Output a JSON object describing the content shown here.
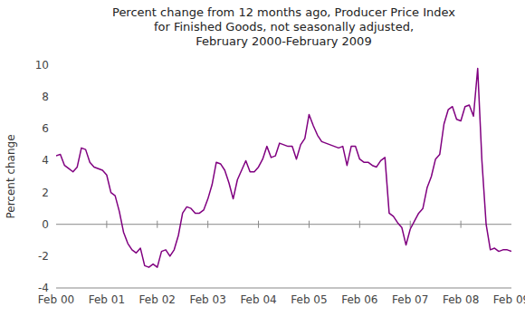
{
  "chart_data": {
    "type": "line",
    "title": "Percent change from 12 months ago, Producer Price Index\nfor Finished Goods, not seasonally adjusted,\nFebruary 2000-February 2009",
    "y_label": "Percent change",
    "color": "#800080",
    "grid": false,
    "ylim": [
      -4,
      10
    ],
    "yticks": [
      -4,
      -2,
      0,
      2,
      4,
      6,
      8,
      10
    ],
    "categories": [
      "Feb 00",
      null,
      null,
      null,
      null,
      null,
      null,
      null,
      null,
      null,
      null,
      null,
      "Feb 01",
      null,
      null,
      null,
      null,
      null,
      null,
      null,
      null,
      null,
      null,
      null,
      "Feb 02",
      null,
      null,
      null,
      null,
      null,
      null,
      null,
      null,
      null,
      null,
      null,
      "Feb 03",
      null,
      null,
      null,
      null,
      null,
      null,
      null,
      null,
      null,
      null,
      null,
      "Feb 04",
      null,
      null,
      null,
      null,
      null,
      null,
      null,
      null,
      null,
      null,
      null,
      "Feb 05",
      null,
      null,
      null,
      null,
      null,
      null,
      null,
      null,
      null,
      null,
      null,
      "Feb 06",
      null,
      null,
      null,
      null,
      null,
      null,
      null,
      null,
      null,
      null,
      null,
      "Feb 07",
      null,
      null,
      null,
      null,
      null,
      null,
      null,
      null,
      null,
      null,
      null,
      "Feb 08",
      null,
      null,
      null,
      null,
      null,
      null,
      null,
      null,
      null,
      null,
      null,
      "Feb 09"
    ],
    "values": [
      4.3,
      4.4,
      3.7,
      3.5,
      3.3,
      3.6,
      4.8,
      4.7,
      3.9,
      3.6,
      3.5,
      3.4,
      3.1,
      2.0,
      1.8,
      0.8,
      -0.5,
      -1.2,
      -1.6,
      -1.8,
      -1.5,
      -2.6,
      -2.7,
      -2.5,
      -2.7,
      -1.7,
      -1.6,
      -2.0,
      -1.6,
      -0.7,
      0.7,
      1.1,
      1.0,
      0.7,
      0.7,
      0.9,
      1.6,
      2.5,
      3.9,
      3.8,
      3.4,
      2.6,
      1.6,
      2.8,
      3.4,
      4.0,
      3.3,
      3.3,
      3.6,
      4.1,
      4.9,
      4.2,
      4.3,
      5.1,
      5.0,
      4.9,
      4.9,
      4.1,
      5.0,
      5.4,
      6.9,
      6.2,
      5.6,
      5.2,
      5.1,
      5.0,
      4.9,
      4.8,
      4.9,
      3.7,
      4.9,
      4.9,
      4.1,
      3.9,
      3.9,
      3.7,
      3.6,
      4.0,
      4.2,
      0.7,
      0.5,
      0.1,
      -0.2,
      -1.3,
      -0.3,
      0.2,
      0.7,
      1.0,
      2.3,
      3.0,
      4.1,
      4.4,
      6.3,
      7.2,
      7.4,
      6.6,
      6.5,
      7.4,
      7.5,
      6.8,
      9.8,
      4.0,
      0.0,
      -1.6,
      -1.5,
      -1.7,
      -1.6,
      -1.6,
      -1.7
    ]
  }
}
